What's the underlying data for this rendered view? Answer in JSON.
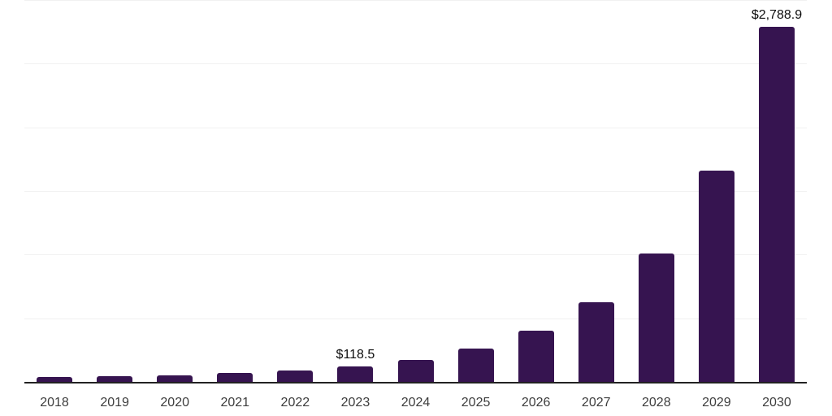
{
  "chart_data": {
    "type": "bar",
    "title": "",
    "xlabel": "",
    "ylabel": "",
    "categories": [
      "2018",
      "2019",
      "2020",
      "2021",
      "2022",
      "2023",
      "2024",
      "2025",
      "2026",
      "2027",
      "2028",
      "2029",
      "2030"
    ],
    "values": [
      37,
      44,
      50,
      71,
      88,
      118.5,
      174,
      263,
      405,
      627,
      1007,
      1658,
      2788.9
    ],
    "data_labels": {
      "2023": "$118.5",
      "2030": "$2,788.9"
    },
    "ylim": [
      0,
      3000
    ],
    "gridline_interval": 500,
    "grid": "horizontal",
    "legend": "none",
    "y_axis_labels_visible": false,
    "colors": {
      "bar": "#361450",
      "axis_line": "#222222",
      "gridline": "#f1f1f1",
      "tick_label": "#3d3d3d",
      "data_label": "#0d0d0d",
      "background": "#ffffff"
    }
  }
}
